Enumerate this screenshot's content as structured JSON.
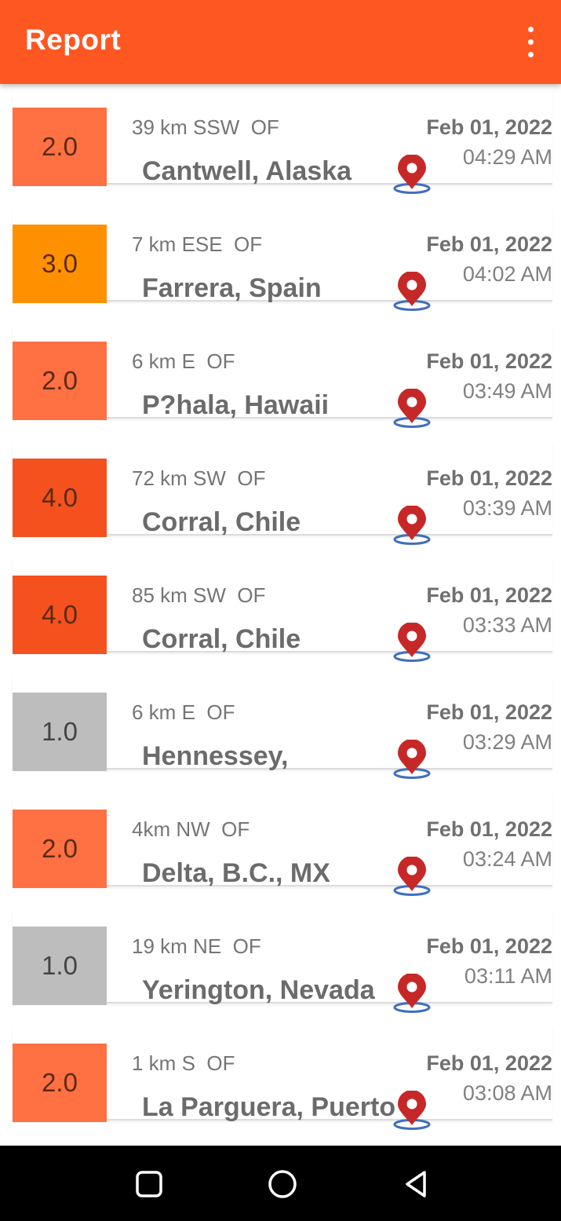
{
  "app": {
    "title": "Report",
    "overflow_icon": "more-vert-icon"
  },
  "colors": {
    "appbar": "#FF5722",
    "mag_1": "#BDBDBD",
    "mag_2": "#FF7043",
    "mag_3": "#FF9100",
    "mag_4": "#F4511E",
    "pin_red": "#C62828",
    "pin_ring": "#3F6FBF"
  },
  "quakes": [
    {
      "magnitude": "2.0",
      "level": 2,
      "distance": "39 km SSW  OF",
      "place": "Cantwell, Alaska",
      "date": "Feb 01, 2022",
      "time": "04:29 AM"
    },
    {
      "magnitude": "3.0",
      "level": 3,
      "distance": "7 km ESE  OF",
      "place": "Farrera, Spain",
      "date": "Feb 01, 2022",
      "time": "04:02 AM"
    },
    {
      "magnitude": "2.0",
      "level": 2,
      "distance": "6 km E  OF",
      "place": "P?hala, Hawaii",
      "date": "Feb 01, 2022",
      "time": "03:49 AM"
    },
    {
      "magnitude": "4.0",
      "level": 4,
      "distance": "72 km SW  OF",
      "place": "Corral, Chile",
      "date": "Feb 01, 2022",
      "time": "03:39 AM"
    },
    {
      "magnitude": "4.0",
      "level": 4,
      "distance": "85 km SW  OF",
      "place": "Corral, Chile",
      "date": "Feb 01, 2022",
      "time": "03:33 AM"
    },
    {
      "magnitude": "1.0",
      "level": 1,
      "distance": "6 km E  OF",
      "place": "Hennessey,",
      "date": "Feb 01, 2022",
      "time": "03:29 AM"
    },
    {
      "magnitude": "2.0",
      "level": 2,
      "distance": "4km NW  OF",
      "place": "Delta, B.C., MX",
      "date": "Feb 01, 2022",
      "time": "03:24 AM"
    },
    {
      "magnitude": "1.0",
      "level": 1,
      "distance": "19 km NE  OF",
      "place": "Yerington, Nevada",
      "date": "Feb 01, 2022",
      "time": "03:11 AM"
    },
    {
      "magnitude": "2.0",
      "level": 2,
      "distance": "1 km S  OF",
      "place": "La Parguera, Puerto",
      "date": "Feb 01, 2022",
      "time": "03:08 AM"
    }
  ],
  "navbar": {
    "recents_icon": "square-recents-icon",
    "home_icon": "circle-home-icon",
    "back_icon": "triangle-back-icon"
  }
}
